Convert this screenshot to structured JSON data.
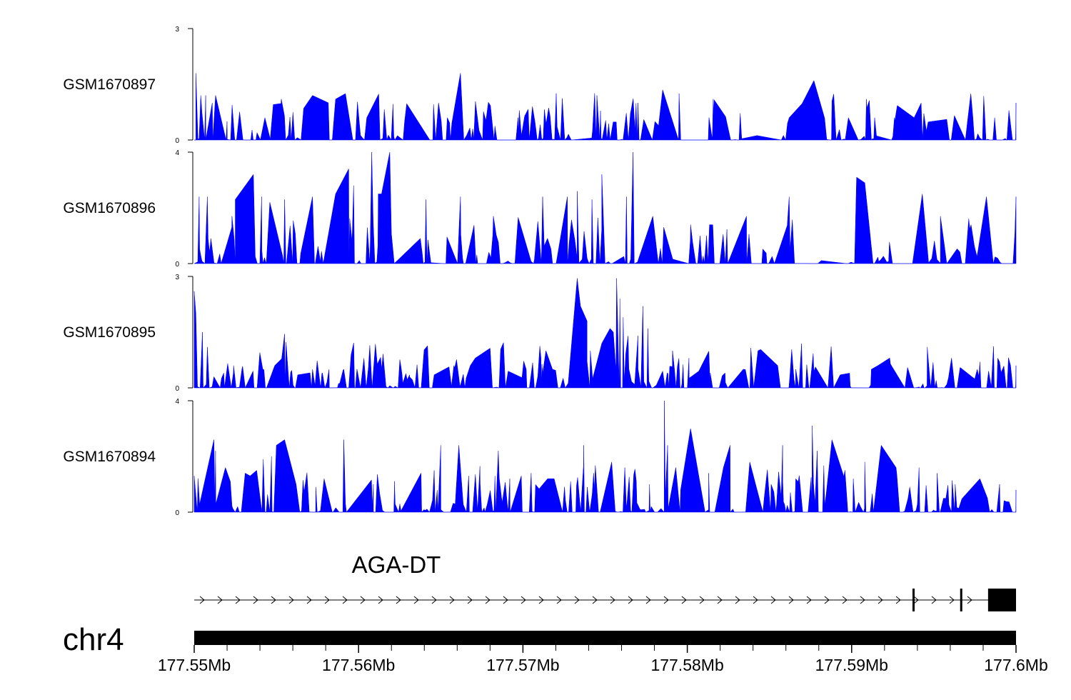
{
  "chart_data": {
    "type": "area",
    "title": "",
    "x_range_mb": [
      177.55,
      177.6
    ],
    "tracks": [
      {
        "name": "GSM1670897",
        "ylim": [
          0,
          3
        ],
        "y_ticks": [
          "3",
          "0"
        ],
        "seed": 97,
        "peaks": [
          [
            177.5501,
            1.8
          ],
          [
            177.5504,
            1.2
          ],
          [
            177.5507,
            1.2
          ],
          [
            177.5511,
            1.0
          ],
          [
            177.5513,
            1.2
          ],
          [
            177.552,
            0.5
          ],
          [
            177.5543,
            0.6
          ],
          [
            177.5553,
            1.1
          ],
          [
            177.5572,
            1.2
          ],
          [
            177.5586,
            1.1
          ],
          [
            177.5592,
            1.25
          ],
          [
            177.5605,
            0.6
          ],
          [
            177.5628,
            0.5
          ],
          [
            177.5662,
            1.8
          ],
          [
            177.5654,
            0.6
          ],
          [
            177.5697,
            0.6
          ],
          [
            177.5745,
            1.2
          ],
          [
            177.577,
            1.0
          ],
          [
            177.5785,
            1.35
          ],
          [
            177.5795,
            1.25
          ],
          [
            177.5816,
            0.65
          ],
          [
            177.5862,
            0.6
          ],
          [
            177.5877,
            1.6
          ],
          [
            177.5888,
            1.05
          ],
          [
            177.5898,
            0.6
          ],
          [
            177.5909,
            1.1
          ],
          [
            177.5914,
            0.6
          ],
          [
            177.5926,
            0.6
          ],
          [
            177.5938,
            0.6
          ],
          [
            177.5987,
            0.6
          ],
          [
            177.6,
            1.0
          ]
        ]
      },
      {
        "name": "GSM1670896",
        "ylim": [
          0,
          4
        ],
        "y_ticks": [
          "4",
          "0"
        ],
        "seed": 96,
        "peaks": [
          [
            177.5503,
            2.4
          ],
          [
            177.5508,
            2.4
          ],
          [
            177.5523,
            1.7
          ],
          [
            177.5525,
            2.3
          ],
          [
            177.5536,
            3.2
          ],
          [
            177.5541,
            2.4
          ],
          [
            177.5546,
            2.2
          ],
          [
            177.5555,
            2.3
          ],
          [
            177.5572,
            2.4
          ],
          [
            177.5586,
            2.5
          ],
          [
            177.5594,
            3.4
          ],
          [
            177.5597,
            2.8
          ],
          [
            177.5608,
            4.0
          ],
          [
            177.5612,
            2.5
          ],
          [
            177.5614,
            2.5
          ],
          [
            177.5619,
            4.0
          ],
          [
            177.5641,
            2.3
          ],
          [
            177.5662,
            2.4
          ],
          [
            177.5682,
            1.7
          ],
          [
            177.5712,
            2.4
          ],
          [
            177.5727,
            2.4
          ],
          [
            177.5733,
            2.6
          ],
          [
            177.5742,
            2.3
          ],
          [
            177.5748,
            3.2
          ],
          [
            177.5763,
            2.4
          ],
          [
            177.5767,
            4.0
          ],
          [
            177.5779,
            1.7
          ],
          [
            177.5802,
            1.4
          ],
          [
            177.5836,
            1.7
          ],
          [
            177.5862,
            2.4
          ],
          [
            177.5903,
            3.1
          ],
          [
            177.5908,
            2.9
          ],
          [
            177.5943,
            2.5
          ],
          [
            177.5954,
            1.7
          ],
          [
            177.5982,
            2.4
          ],
          [
            177.6,
            2.4
          ]
        ]
      },
      {
        "name": "GSM1670895",
        "ylim": [
          0,
          3
        ],
        "y_ticks": [
          "3",
          "0"
        ],
        "seed": 95,
        "peaks": [
          [
            177.55,
            2.6
          ],
          [
            177.5501,
            2.0
          ],
          [
            177.5505,
            1.5
          ],
          [
            177.5508,
            1.1
          ],
          [
            177.5512,
            0.3
          ],
          [
            177.5518,
            0.4
          ],
          [
            177.5524,
            0.6
          ],
          [
            177.5529,
            0.5
          ],
          [
            177.5542,
            0.5
          ],
          [
            177.5549,
            0.6
          ],
          [
            177.5555,
            1.45
          ],
          [
            177.5563,
            0.35
          ],
          [
            177.5572,
            0.5
          ],
          [
            177.5578,
            0.4
          ],
          [
            177.5582,
            0.5
          ],
          [
            177.5591,
            0.5
          ],
          [
            177.5599,
            0.5
          ],
          [
            177.5606,
            0.55
          ],
          [
            177.5614,
            0.5
          ],
          [
            177.5631,
            0.35
          ],
          [
            177.5646,
            0.35
          ],
          [
            177.5658,
            0.6
          ],
          [
            177.5668,
            0.6
          ],
          [
            177.5671,
            0.8
          ],
          [
            177.5691,
            0.45
          ],
          [
            177.5702,
            0.5
          ],
          [
            177.5711,
            0.8
          ],
          [
            177.5714,
            1.0
          ],
          [
            177.5718,
            0.5
          ],
          [
            177.5733,
            2.95
          ],
          [
            177.5735,
            2.2
          ],
          [
            177.5739,
            1.8
          ],
          [
            177.5741,
            1.0
          ],
          [
            177.5748,
            1.2
          ],
          [
            177.5753,
            1.6
          ],
          [
            177.5755,
            1.5
          ],
          [
            177.5757,
            2.95
          ],
          [
            177.5759,
            2.4
          ],
          [
            177.5761,
            1.9
          ],
          [
            177.5764,
            1.4
          ],
          [
            177.577,
            1.4
          ],
          [
            177.5773,
            2.2
          ],
          [
            177.5776,
            1.6
          ],
          [
            177.5785,
            0.45
          ],
          [
            177.5791,
            1.0
          ],
          [
            177.5801,
            0.8
          ],
          [
            177.5807,
            0.45
          ],
          [
            177.5814,
            0.4
          ],
          [
            177.5823,
            0.4
          ],
          [
            177.5834,
            0.5
          ],
          [
            177.5843,
            1.0
          ],
          [
            177.5855,
            0.6
          ],
          [
            177.5866,
            0.5
          ],
          [
            177.5877,
            0.45
          ],
          [
            177.5893,
            0.35
          ],
          [
            177.5912,
            0.5
          ],
          [
            177.5916,
            0.6
          ],
          [
            177.5934,
            0.55
          ],
          [
            177.5946,
            1.1
          ],
          [
            177.5966,
            0.55
          ],
          [
            177.5978,
            0.7
          ],
          [
            177.599,
            0.7
          ],
          [
            177.6,
            0.6
          ]
        ]
      },
      {
        "name": "GSM1670894",
        "ylim": [
          0,
          4
        ],
        "y_ticks": [
          "4",
          "0"
        ],
        "seed": 94,
        "peaks": [
          [
            177.55,
            1.3
          ],
          [
            177.5512,
            2.6
          ],
          [
            177.5513,
            2.2
          ],
          [
            177.5519,
            1.6
          ],
          [
            177.5522,
            1.1
          ],
          [
            177.5531,
            1.4
          ],
          [
            177.5534,
            1.3
          ],
          [
            177.5538,
            1.5
          ],
          [
            177.5542,
            1.9
          ],
          [
            177.5547,
            2.0
          ],
          [
            177.555,
            2.4
          ],
          [
            177.5555,
            2.6
          ],
          [
            177.5562,
            1.0
          ],
          [
            177.5574,
            0.9
          ],
          [
            177.5579,
            1.2
          ],
          [
            177.5591,
            2.6
          ],
          [
            177.5609,
            1.0
          ],
          [
            177.5622,
            0.8
          ],
          [
            177.5638,
            1.4
          ],
          [
            177.5646,
            1.5
          ],
          [
            177.565,
            2.4
          ],
          [
            177.5661,
            2.4
          ],
          [
            177.5667,
            1.3
          ],
          [
            177.5674,
            1.0
          ],
          [
            177.5685,
            2.2
          ],
          [
            177.5692,
            1.2
          ],
          [
            177.5699,
            1.3
          ],
          [
            177.5705,
            1.4
          ],
          [
            177.5715,
            1.2
          ],
          [
            177.5719,
            1.2
          ],
          [
            177.5729,
            1.1
          ],
          [
            177.5737,
            2.4
          ],
          [
            177.5743,
            1.4
          ],
          [
            177.5754,
            1.8
          ],
          [
            177.5762,
            1.6
          ],
          [
            177.5769,
            1.1
          ],
          [
            177.5777,
            1.0
          ],
          [
            177.5786,
            4.0
          ],
          [
            177.5788,
            2.4
          ],
          [
            177.5793,
            1.6
          ],
          [
            177.5802,
            3.0
          ],
          [
            177.5813,
            1.4
          ],
          [
            177.5822,
            1.6
          ],
          [
            177.5826,
            2.4
          ],
          [
            177.5838,
            1.8
          ],
          [
            177.5851,
            1.0
          ],
          [
            177.5858,
            2.4
          ],
          [
            177.5866,
            1.2
          ],
          [
            177.5876,
            3.1
          ],
          [
            177.5879,
            2.2
          ],
          [
            177.5888,
            2.6
          ],
          [
            177.5901,
            1.2
          ],
          [
            177.5908,
            1.8
          ],
          [
            177.5918,
            2.4
          ],
          [
            177.5927,
            1.6
          ],
          [
            177.5941,
            1.6
          ],
          [
            177.5952,
            1.4
          ],
          [
            177.5963,
            1.0
          ],
          [
            177.5978,
            1.2
          ],
          [
            177.599,
            1.0
          ],
          [
            177.6,
            0.8
          ]
        ]
      }
    ],
    "x_axis": {
      "ticks_mb": [
        177.55,
        177.56,
        177.57,
        177.58,
        177.59,
        177.6
      ],
      "tick_labels": [
        "177.55Mb",
        "177.56Mb",
        "177.57Mb",
        "177.58Mb",
        "177.59Mb",
        "177.6Mb"
      ],
      "minor_step_mb": 0.002
    },
    "gene": {
      "name": "AGA-DT",
      "strand": "+",
      "start_mb": 177.55,
      "end_mb": 177.6,
      "exons_mb": [
        [
          177.5937,
          177.5938
        ],
        [
          177.5966,
          177.5967
        ],
        [
          177.5983,
          177.6
        ]
      ]
    },
    "chromosome": {
      "name": "chr4",
      "start_mb": 177.55,
      "end_mb": 177.6
    },
    "colors": {
      "signal": "#0000ff",
      "axis": "#000000",
      "gene": "#000000",
      "label": "#000000"
    }
  }
}
